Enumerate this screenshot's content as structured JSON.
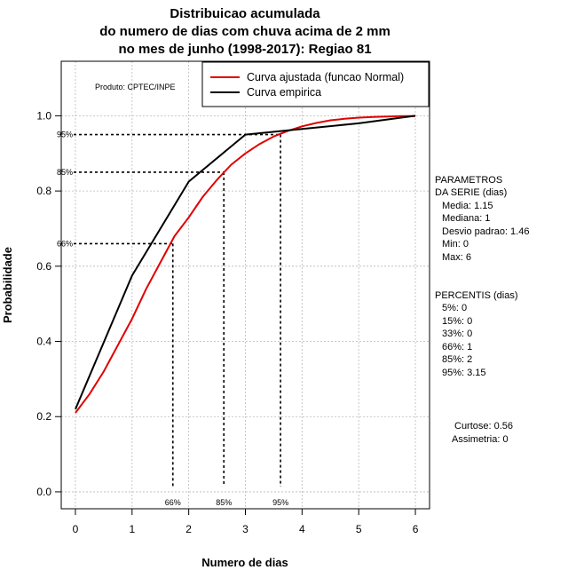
{
  "chart_data": {
    "type": "line",
    "title_lines": [
      "Distribuicao acumulada",
      "do numero de dias com chuva acima de 2 mm",
      "no mes de junho (1998-2017): Regiao 81"
    ],
    "xlabel": "Numero de dias",
    "ylabel": "Probabilidade",
    "xlim": [
      -0.25,
      6.25
    ],
    "ylim": [
      -0.045,
      1.145
    ],
    "x_ticks": [
      0,
      1,
      2,
      3,
      4,
      5,
      6
    ],
    "x_tick_labels": [
      "0",
      "1",
      "2",
      "3",
      "4",
      "5",
      "6"
    ],
    "y_ticks": [
      0.0,
      0.2,
      0.4,
      0.6,
      0.8,
      1.0
    ],
    "y_tick_labels": [
      "0.0",
      "0.2",
      "0.4",
      "0.6",
      "0.8",
      "1.0"
    ],
    "grid": true,
    "product_label": "Produto: CPTEC/INPE",
    "legend": {
      "position": "top-right",
      "entries": [
        {
          "label": "Curva ajustada (funcao Normal)",
          "color": "#e00000"
        },
        {
          "label": "Curva empirica",
          "color": "#000000"
        }
      ]
    },
    "series": [
      {
        "name": "Curva ajustada (funcao Normal)",
        "color": "#e00000",
        "x": [
          0,
          0.25,
          0.5,
          0.75,
          1.0,
          1.25,
          1.5,
          1.75,
          2.0,
          2.25,
          2.5,
          2.75,
          3.0,
          3.25,
          3.5,
          3.75,
          4.0,
          4.25,
          4.5,
          4.75,
          5.0,
          5.25,
          5.5,
          5.75,
          6.0
        ],
        "y": [
          0.21,
          0.26,
          0.32,
          0.39,
          0.46,
          0.54,
          0.61,
          0.68,
          0.73,
          0.785,
          0.83,
          0.87,
          0.9,
          0.925,
          0.945,
          0.96,
          0.972,
          0.981,
          0.988,
          0.992,
          0.995,
          0.997,
          0.998,
          0.999,
          0.999
        ]
      },
      {
        "name": "Curva empirica",
        "color": "#000000",
        "x": [
          0,
          1,
          2,
          3,
          4,
          5,
          6
        ],
        "y": [
          0.22,
          0.575,
          0.825,
          0.95,
          0.965,
          0.98,
          1.0
        ]
      }
    ],
    "percentile_markers": [
      {
        "label": "66%",
        "prob": 0.66,
        "x": 1.72
      },
      {
        "label": "85%",
        "prob": 0.85,
        "x": 2.62
      },
      {
        "label": "95%",
        "prob": 0.95,
        "x": 3.62
      }
    ],
    "side_panel": {
      "parametros_header": [
        "PARAMETROS",
        "DA SERIE (dias)"
      ],
      "parametros": [
        "Media: 1.15",
        "Mediana: 1",
        "Desvio padrao: 1.46",
        "Min: 0",
        "Max: 6"
      ],
      "percentis_header": "PERCENTIS (dias)",
      "percentis": [
        "5%: 0",
        "15%: 0",
        "33%: 0",
        "66%: 1",
        "85%: 2",
        "95%: 3.15"
      ],
      "curtose": "Curtose: 0.56",
      "assimetria": "Assimetria: 0"
    }
  }
}
